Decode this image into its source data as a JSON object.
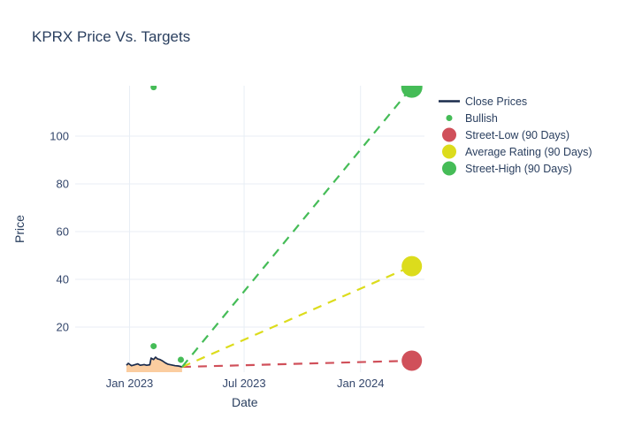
{
  "title": "KPRX Price Vs. Targets",
  "chart_data": {
    "type": "line",
    "title": "KPRX Price Vs. Targets",
    "xlabel": "Date",
    "ylabel": "Price",
    "grid": true,
    "legend_position": "right-outside-top",
    "background": "#ffffff",
    "grid_color": "#e8eef5",
    "text_color": "#2a3f5f",
    "xlim": [
      "2022-10-07",
      "2024-04-11"
    ],
    "ylim": [
      1.1,
      121.1
    ],
    "x_ticks": [
      {
        "label": "Jan 2023",
        "date": "2023-01-01"
      },
      {
        "label": "Jul 2023",
        "date": "2023-07-01"
      },
      {
        "label": "Jan 2024",
        "date": "2024-01-01"
      }
    ],
    "y_ticks": [
      20,
      40,
      60,
      80,
      100
    ],
    "series": [
      {
        "name": "Close Prices",
        "type": "line",
        "color": "#1a2b4c",
        "fill_color": "#fbcda0",
        "line_width": 1.7,
        "points": [
          [
            "2022-12-27",
            4.0
          ],
          [
            "2022-12-30",
            4.8
          ],
          [
            "2023-01-04",
            3.8
          ],
          [
            "2023-01-10",
            4.3
          ],
          [
            "2023-01-14",
            4.6
          ],
          [
            "2023-01-18",
            4.0
          ],
          [
            "2023-01-24",
            4.3
          ],
          [
            "2023-01-28",
            4.0
          ],
          [
            "2023-02-02",
            4.2
          ],
          [
            "2023-02-04",
            7.0
          ],
          [
            "2023-02-08",
            6.4
          ],
          [
            "2023-02-11",
            7.4
          ],
          [
            "2023-02-14",
            6.7
          ],
          [
            "2023-02-18",
            6.4
          ],
          [
            "2023-02-22",
            5.8
          ],
          [
            "2023-02-27",
            4.9
          ],
          [
            "2023-03-03",
            4.4
          ],
          [
            "2023-03-09",
            4.1
          ],
          [
            "2023-03-14",
            3.8
          ],
          [
            "2023-03-19",
            3.7
          ],
          [
            "2023-03-22",
            3.5
          ],
          [
            "2023-03-25",
            3.3
          ]
        ]
      },
      {
        "name": "Bullish",
        "type": "scatter",
        "color": "#45bc57",
        "marker_radius": 3.5,
        "points": [
          [
            "2023-02-08",
            12.0
          ],
          [
            "2023-02-08",
            120.5
          ],
          [
            "2023-03-23",
            6.3
          ]
        ]
      },
      {
        "name": "Street-Low (90 Days)",
        "type": "dashed-projection",
        "color": "#d0505a",
        "marker_radius": 11.5,
        "from": [
          "2023-03-25",
          3.3
        ],
        "to": [
          "2024-03-22",
          5.9
        ]
      },
      {
        "name": "Average Rating (90 Days)",
        "type": "dashed-projection",
        "color": "#dcdc1c",
        "marker_radius": 11.5,
        "from": [
          "2023-03-25",
          3.3
        ],
        "to": [
          "2024-03-22",
          45.5
        ]
      },
      {
        "name": "Street-High (90 Days)",
        "type": "dashed-projection",
        "color": "#45bc57",
        "marker_radius": 12,
        "from": [
          "2023-03-25",
          3.3
        ],
        "to": [
          "2024-03-22",
          120.5
        ]
      }
    ]
  }
}
